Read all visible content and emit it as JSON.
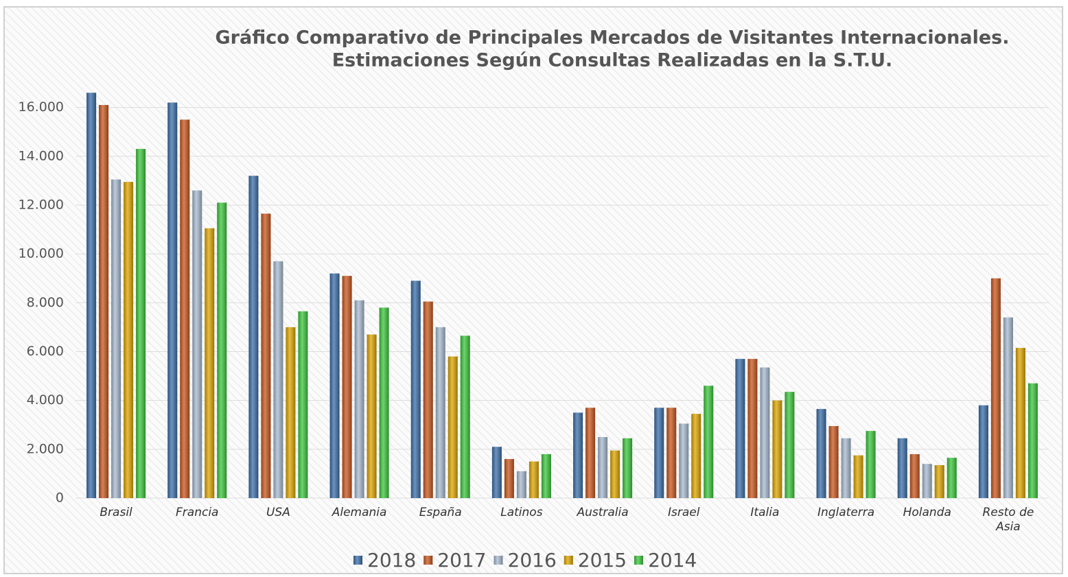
{
  "chart_data": {
    "type": "bar",
    "title": [
      "Gráfico Comparativo de Principales Mercados de Visitantes Internacionales.",
      "Estimaciones Según Consultas Realizadas en la S.T.U."
    ],
    "categories": [
      "Brasil",
      "Francia",
      "USA",
      "Alemania",
      "España",
      "Latinos",
      "Australia",
      "Israel",
      "Italia",
      "Inglaterra",
      "Holanda",
      "Resto de Asia"
    ],
    "series": [
      {
        "name": "2018",
        "color": "#3b6ea8",
        "values": [
          16600,
          16200,
          13200,
          9200,
          8900,
          2100,
          3500,
          3700,
          5700,
          3650,
          2450,
          3800
        ]
      },
      {
        "name": "2017",
        "color": "#c8561e",
        "values": [
          16100,
          15500,
          11650,
          9100,
          8050,
          1600,
          3700,
          3700,
          5700,
          2950,
          1800,
          9000
        ]
      },
      {
        "name": "2016",
        "color": "#a6b9cf",
        "values": [
          13050,
          12600,
          9700,
          8100,
          7000,
          1100,
          2500,
          3050,
          5350,
          2450,
          1400,
          7400
        ]
      },
      {
        "name": "2015",
        "color": "#dca400",
        "values": [
          12950,
          11050,
          7000,
          6700,
          5800,
          1500,
          1950,
          3450,
          4000,
          1750,
          1350,
          6150
        ]
      },
      {
        "name": "2014",
        "color": "#3cc63c",
        "values": [
          14300,
          12100,
          7650,
          7800,
          6650,
          1800,
          2450,
          4600,
          4350,
          2750,
          1650,
          4700
        ]
      }
    ],
    "ylim": [
      0,
      17000
    ],
    "yticks": [
      0,
      {
        "value": 2000,
        "label": "2.000"
      },
      {
        "value": 4000,
        "label": "4.000"
      },
      {
        "value": 6000,
        "label": "6.000"
      },
      {
        "value": 8000,
        "label": "8.000"
      },
      {
        "value": 10000,
        "label": "10.000"
      },
      {
        "value": 12000,
        "label": "12.000"
      },
      {
        "value": 14000,
        "label": "14.000"
      },
      {
        "value": 16000,
        "label": "16.000"
      }
    ],
    "grid": true,
    "legend": "bottom"
  }
}
